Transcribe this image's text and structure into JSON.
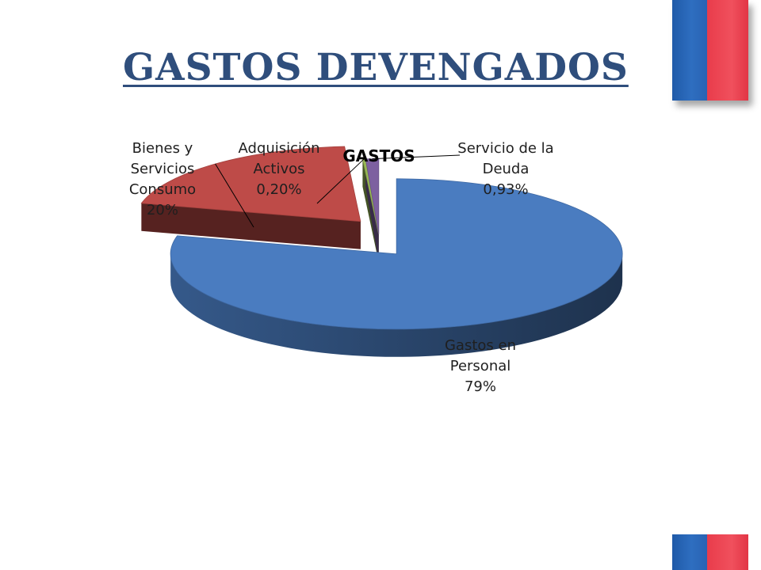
{
  "page": {
    "title": "GASTOS DEVENGADOS"
  },
  "colors": {
    "title": "#2f4e7c",
    "flag_blue": "#2a63b3",
    "flag_red": "#ef4b58"
  },
  "chart_data": {
    "type": "pie",
    "title": "GASTOS",
    "style": "3d-exploded",
    "slices": [
      {
        "name": "Gastos en Personal",
        "label_lines": [
          "Gastos en",
          "Personal",
          "79%"
        ],
        "value": 79,
        "color": "#4a7cc0"
      },
      {
        "name": "Bienes y Servicios Consumo",
        "label_lines": [
          "Bienes y",
          "Servicios",
          "Consumo",
          "20%"
        ],
        "value": 20,
        "color": "#be4b48"
      },
      {
        "name": "Adquisición Activos",
        "label_lines": [
          "Adquisición",
          "Activos",
          "0,20%"
        ],
        "value": 0.2,
        "color": "#98b954"
      },
      {
        "name": "Servicio de la Deuda",
        "label_lines": [
          "Servicio de la",
          "Deuda",
          "0,93%"
        ],
        "value": 0.93,
        "color": "#7d60a0"
      }
    ],
    "legend": "none"
  }
}
